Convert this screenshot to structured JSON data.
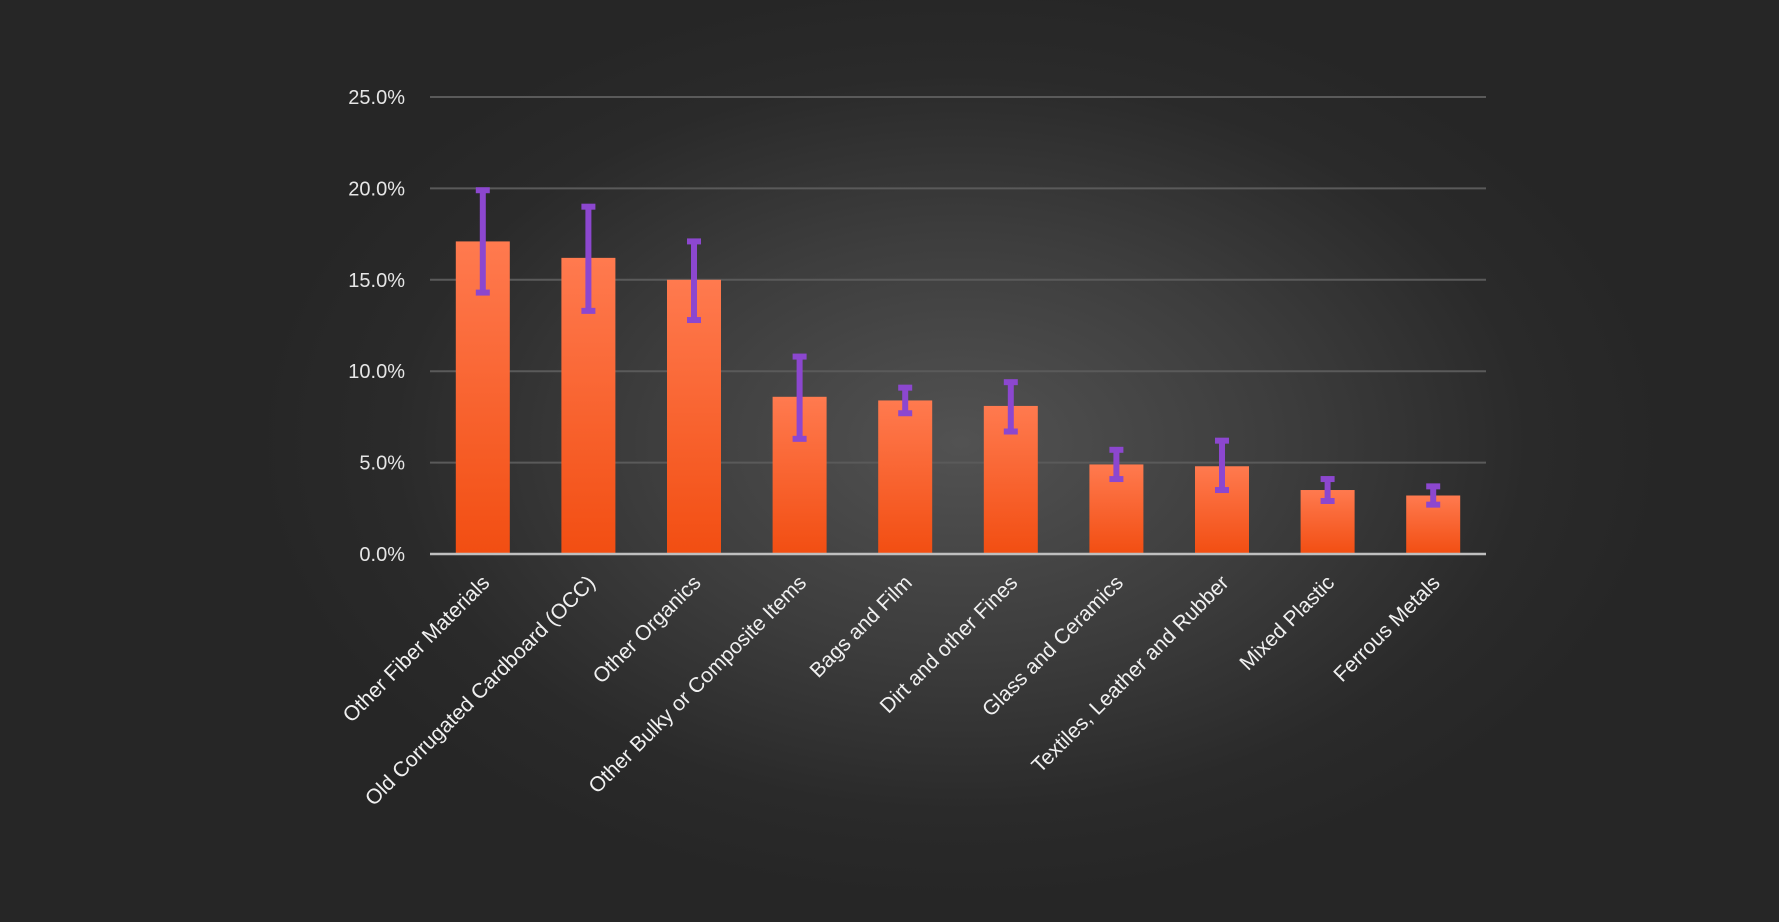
{
  "chart_data": {
    "type": "bar",
    "title": "",
    "xlabel": "",
    "ylabel": "",
    "ylim": [
      0,
      25
    ],
    "yticks": [
      "0.0%",
      "5.0%",
      "10.0%",
      "15.0%",
      "20.0%",
      "25.0%"
    ],
    "ytick_values": [
      0,
      5,
      10,
      15,
      20,
      25
    ],
    "grid": true,
    "legend": "none",
    "categories": [
      "Other Fiber Materials",
      "Old Corrugated Cardboard (OCC)",
      "Other Organics",
      "Other Bulky or Composite Items",
      "Bags and Film",
      "Dirt and other Fines",
      "Glass and Ceramics",
      "Textiles, Leather and Rubber",
      "Mixed Plastic",
      "Ferrous Metals"
    ],
    "values": [
      17.1,
      16.2,
      15.0,
      8.6,
      8.4,
      8.1,
      4.9,
      4.8,
      3.5,
      3.2
    ],
    "error_low": [
      14.3,
      13.3,
      12.8,
      6.3,
      7.7,
      6.7,
      4.1,
      3.5,
      2.9,
      2.7
    ],
    "error_high": [
      19.9,
      19.0,
      17.1,
      10.8,
      9.1,
      9.4,
      5.7,
      6.2,
      4.1,
      3.7
    ],
    "colors": {
      "bar_top": "#ff7a4f",
      "bar_bottom": "#f24e12",
      "error_bar": "#8c47cf",
      "grid": "#5a5a5a",
      "axis": "#bfbfbf"
    }
  }
}
